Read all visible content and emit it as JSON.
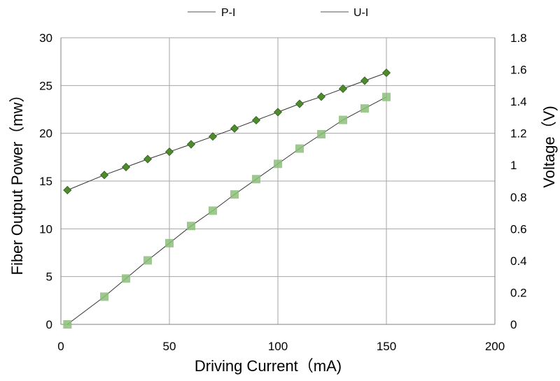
{
  "chart_data": {
    "type": "scatter",
    "title": "",
    "xlabel": "Driving Current（mA)",
    "ylabel": "Fiber Output Power（mw）",
    "y2label": "Voltage（V)",
    "xlim": [
      0,
      200
    ],
    "ylim": [
      0,
      30
    ],
    "y2lim": [
      0,
      1.8
    ],
    "xticks": [
      "0",
      "50",
      "100",
      "150",
      "200"
    ],
    "yticks": [
      "0",
      "5",
      "10",
      "15",
      "20",
      "25",
      "30"
    ],
    "y2ticks": [
      "0",
      "0.2",
      "0.4",
      "0.6",
      "0.8",
      "1",
      "1.2",
      "1.4",
      "1.6",
      "1.8"
    ],
    "grid": true,
    "legend_position": "top-center",
    "series": [
      {
        "name": "P-I",
        "axis": "left",
        "marker": "square",
        "color": "#8cc07a",
        "x": [
          3,
          20,
          30,
          40,
          50,
          60,
          70,
          80,
          90,
          100,
          110,
          120,
          130,
          140,
          150
        ],
        "y": [
          0,
          2.9,
          4.8,
          6.7,
          8.5,
          10.3,
          11.9,
          13.6,
          15.2,
          16.8,
          18.4,
          19.9,
          21.4,
          22.6,
          23.8
        ]
      },
      {
        "name": "U-I",
        "axis": "right",
        "marker": "diamond",
        "color": "#4e8a2e",
        "x": [
          3,
          20,
          30,
          40,
          50,
          60,
          70,
          80,
          90,
          100,
          110,
          120,
          130,
          140,
          150
        ],
        "y": [
          0.843,
          0.938,
          0.988,
          1.038,
          1.084,
          1.131,
          1.18,
          1.23,
          1.282,
          1.333,
          1.385,
          1.43,
          1.48,
          1.53,
          1.58
        ]
      }
    ]
  }
}
